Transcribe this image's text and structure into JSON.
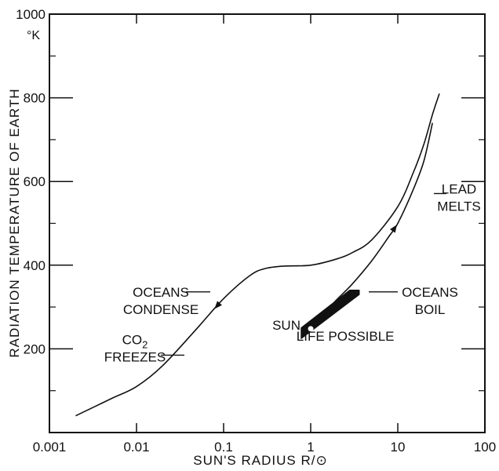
{
  "chart_data": {
    "type": "line",
    "xscale": "log",
    "xlim": [
      0.001,
      100
    ],
    "ylim": [
      0,
      1000
    ],
    "xlabel": "SUN'S RADIUS R/⊙",
    "ylabel": "RADIATION TEMPERATURE OF EARTH",
    "yunit": "°K",
    "x_ticks": [
      "0.001",
      "0.01",
      "0.1",
      "1",
      "10",
      "100"
    ],
    "y_ticks": [
      "200",
      "400",
      "600",
      "800",
      "1000"
    ],
    "grid": false,
    "series": [
      {
        "x": [
          0.002,
          0.005,
          0.01,
          0.02,
          0.05,
          0.1,
          0.2,
          0.3,
          0.5,
          1,
          2,
          3,
          5,
          10,
          15,
          20,
          25,
          30
        ],
        "y": [
          40,
          80,
          110,
          160,
          250,
          320,
          375,
          392,
          398,
          400,
          415,
          430,
          460,
          540,
          620,
          690,
          760,
          810
        ]
      },
      {
        "x": [
          0.78,
          1,
          1.5,
          2,
          3,
          5,
          8,
          10,
          15,
          20,
          25
        ],
        "y": [
          230,
          260,
          290,
          318,
          355,
          410,
          470,
          500,
          580,
          650,
          740
        ]
      }
    ],
    "region": {
      "label": "LIFE POSSIBLE",
      "x": [
        0.78,
        3.6
      ],
      "y_low": [
        225,
        330
      ],
      "y_high": [
        250,
        340
      ]
    },
    "point": {
      "label": "SUN",
      "x": 1,
      "y": 248
    },
    "annotations": [
      {
        "text": [
          "OCEANS",
          "CONDENSE"
        ],
        "y": 340
      },
      {
        "text": [
          "CO2",
          "FREEZES"
        ],
        "y": 200
      },
      {
        "text": [
          "LEAD",
          "MELTS"
        ],
        "y": 590
      },
      {
        "text": [
          "OCEANS",
          "BOIL"
        ],
        "y": 340
      }
    ]
  }
}
